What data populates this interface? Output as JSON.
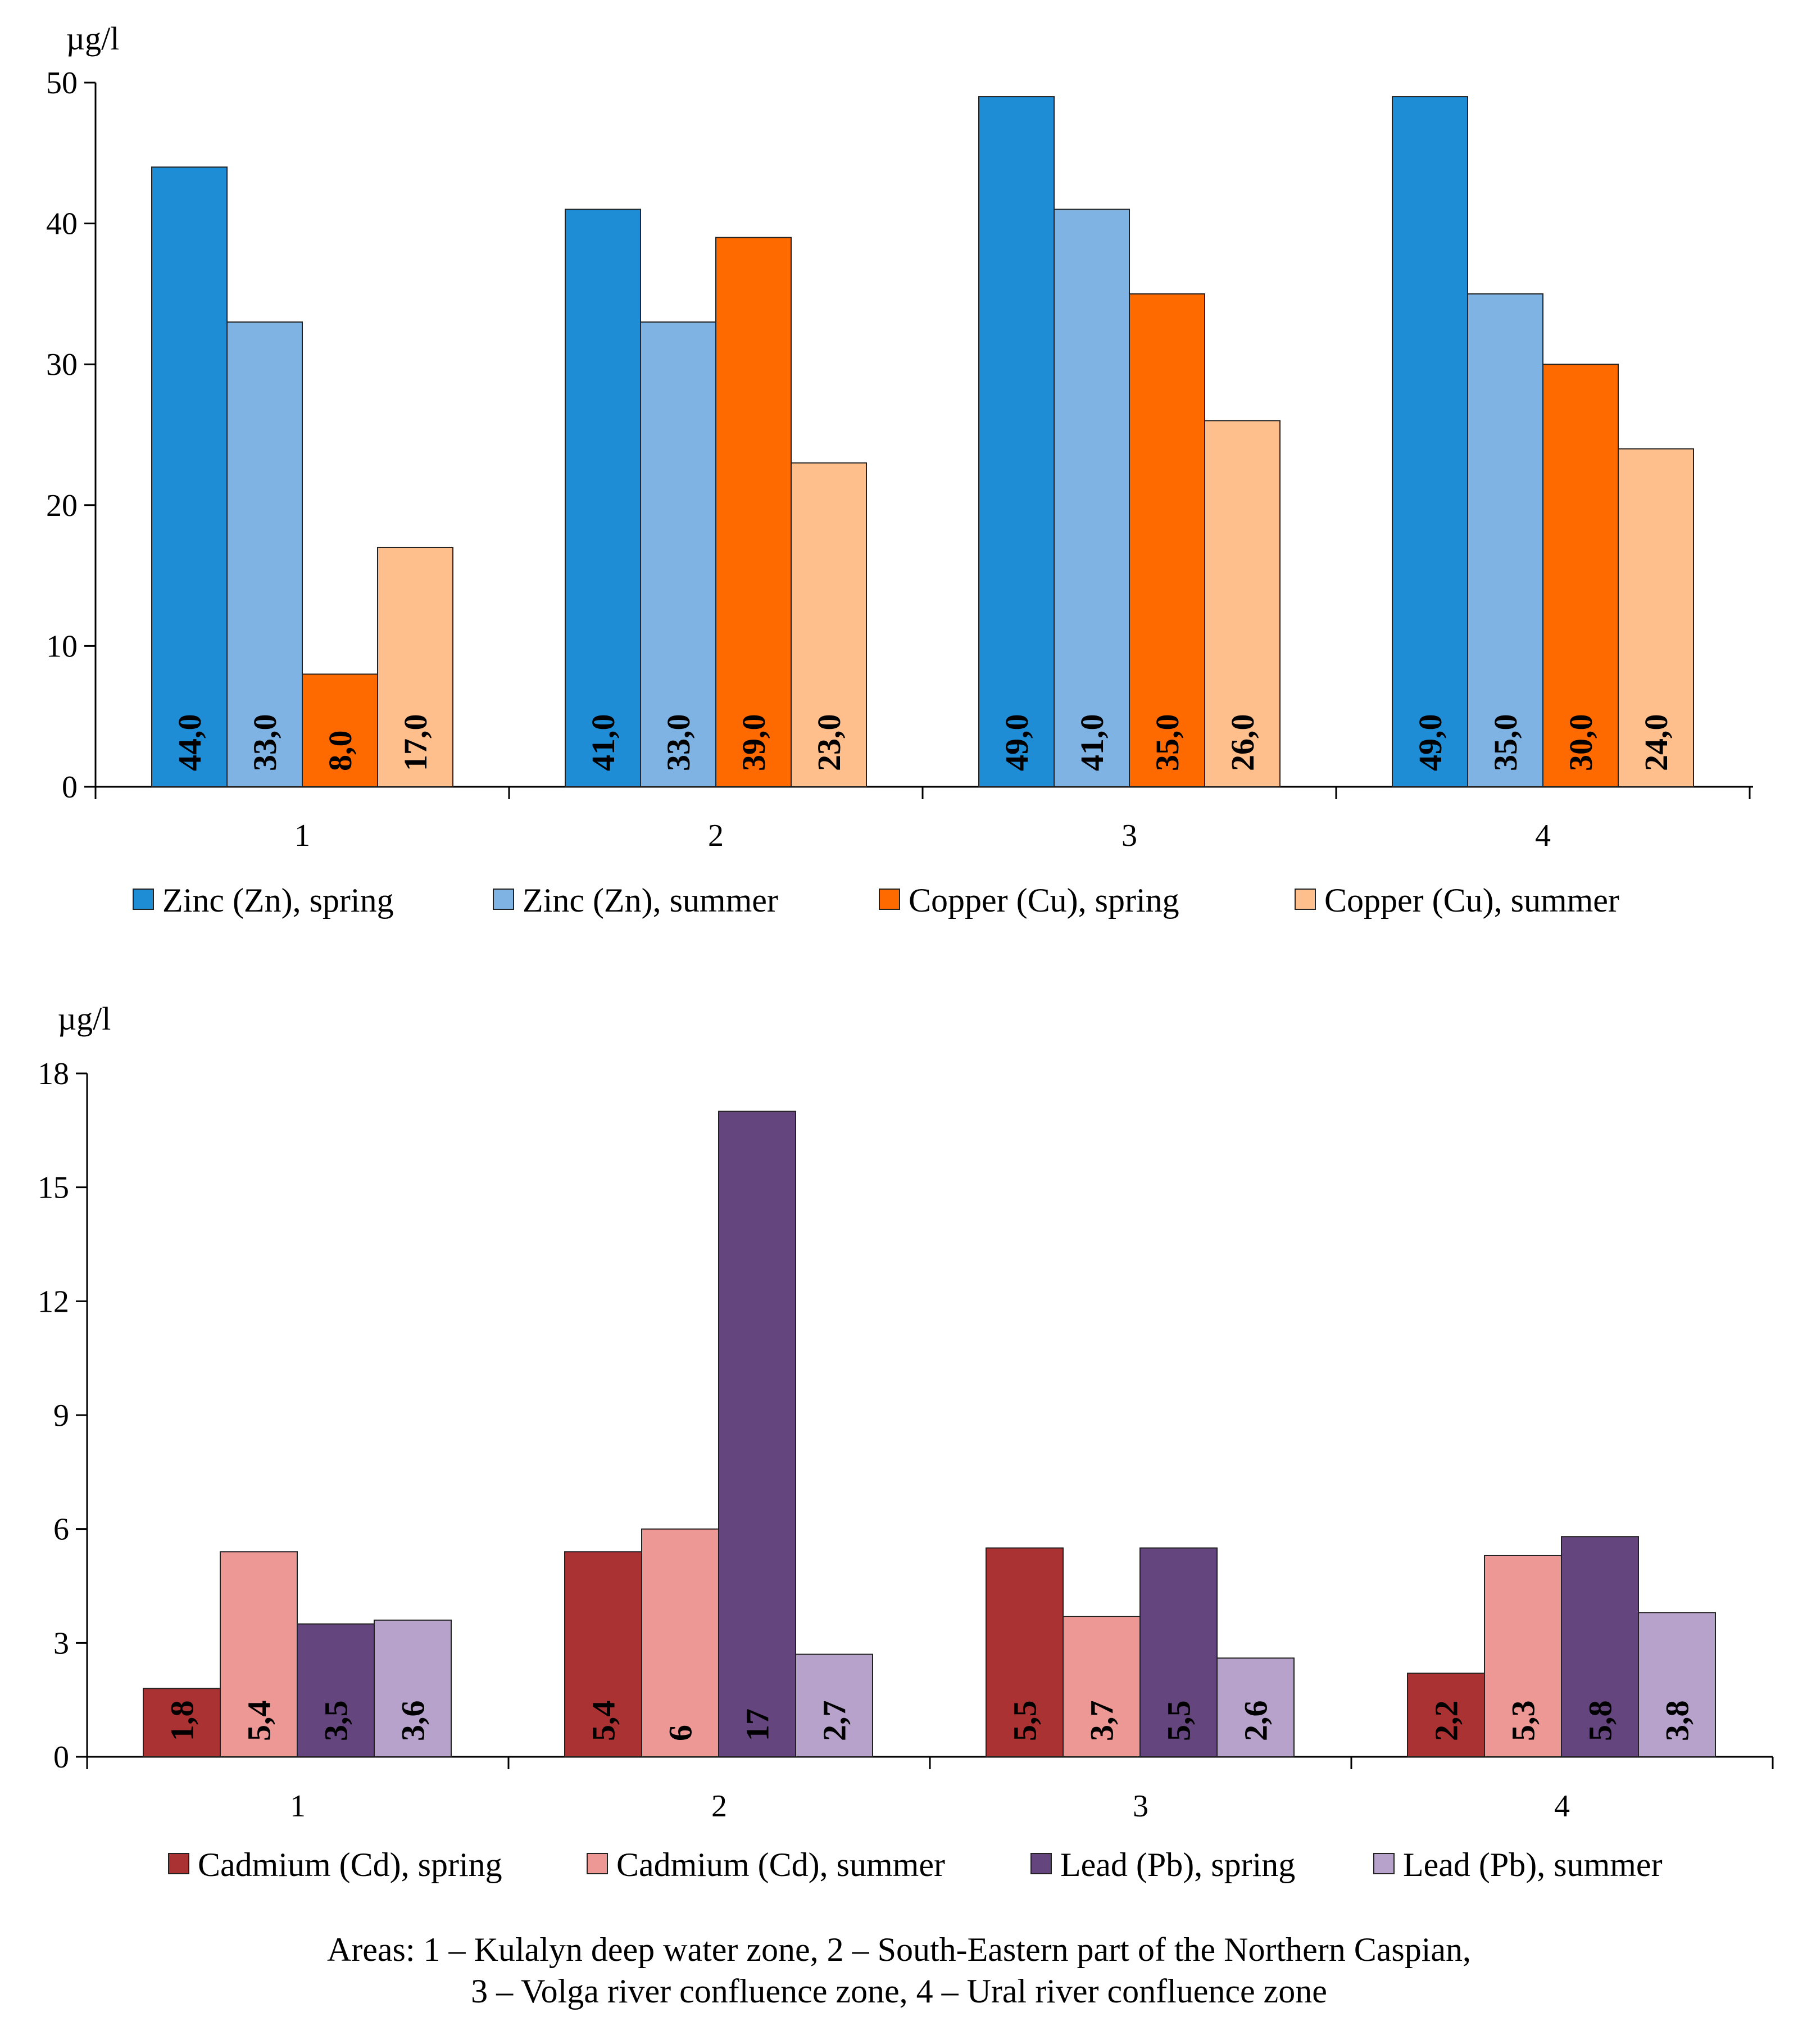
{
  "chart_data": [
    {
      "type": "bar",
      "ylabel": "µg/l",
      "categories": [
        "1",
        "2",
        "3",
        "4"
      ],
      "ylim": [
        0,
        50
      ],
      "yticks": [
        0,
        10,
        20,
        30,
        40,
        50
      ],
      "grid": false,
      "legend_position": "bottom",
      "series": [
        {
          "name": "Zinc (Zn), spring",
          "color": "#1f8dd6",
          "values": [
            44,
            41,
            49,
            49
          ],
          "labels": [
            "44,0",
            "41,0",
            "49,0",
            "49,0"
          ]
        },
        {
          "name": "Zinc (Zn), summer",
          "color": "#7eb3e3",
          "values": [
            33,
            33,
            41,
            35
          ],
          "labels": [
            "33,0",
            "33,0",
            "41,0",
            "35,0"
          ]
        },
        {
          "name": "Copper (Cu),  spring",
          "color": "#ff6a00",
          "values": [
            8,
            39,
            35,
            30
          ],
          "labels": [
            "8,0",
            "39,0",
            "35,0",
            "30,0"
          ]
        },
        {
          "name": "Copper (Cu),  summer",
          "color": "#ffbf8d",
          "values": [
            17,
            23,
            26,
            24
          ],
          "labels": [
            "17,0",
            "23,0",
            "26,0",
            "24,0"
          ]
        }
      ]
    },
    {
      "type": "bar",
      "ylabel": "µg/l",
      "categories": [
        "1",
        "2",
        "3",
        "4"
      ],
      "ylim": [
        0,
        18
      ],
      "yticks": [
        0,
        3,
        6,
        9,
        12,
        15,
        18
      ],
      "grid": false,
      "legend_position": "bottom",
      "series": [
        {
          "name": "Cadmium (Cd), spring",
          "color": "#ab3232",
          "values": [
            1.8,
            5.4,
            5.5,
            2.2
          ],
          "labels": [
            "1,8",
            "5,4",
            "5,5",
            "2,2"
          ]
        },
        {
          "name": "Cadmium (Cd), summer",
          "color": "#ee9896",
          "values": [
            5.4,
            6,
            3.7,
            5.3
          ],
          "labels": [
            "5,4",
            "6",
            "3,7",
            "5,3"
          ]
        },
        {
          "name": "Lead (Pb),  spring",
          "color": "#65457d",
          "values": [
            3.5,
            17,
            5.5,
            5.8
          ],
          "labels": [
            "3,5",
            "17",
            "5,5",
            "5,8"
          ]
        },
        {
          "name": "Lead (Pb),  summer",
          "color": "#b7a2cc",
          "values": [
            3.6,
            2.7,
            2.6,
            3.8
          ],
          "labels": [
            "3,6",
            "2,7",
            "2,6",
            "3,8"
          ]
        }
      ]
    }
  ],
  "caption": {
    "line1": "Areas:  1 – Kulalyn deep water zone, 2 – South-Eastern part of the Northern Caspian,",
    "line2": "3 – Volga river confluence zone, 4 – Ural river confluence zone"
  }
}
